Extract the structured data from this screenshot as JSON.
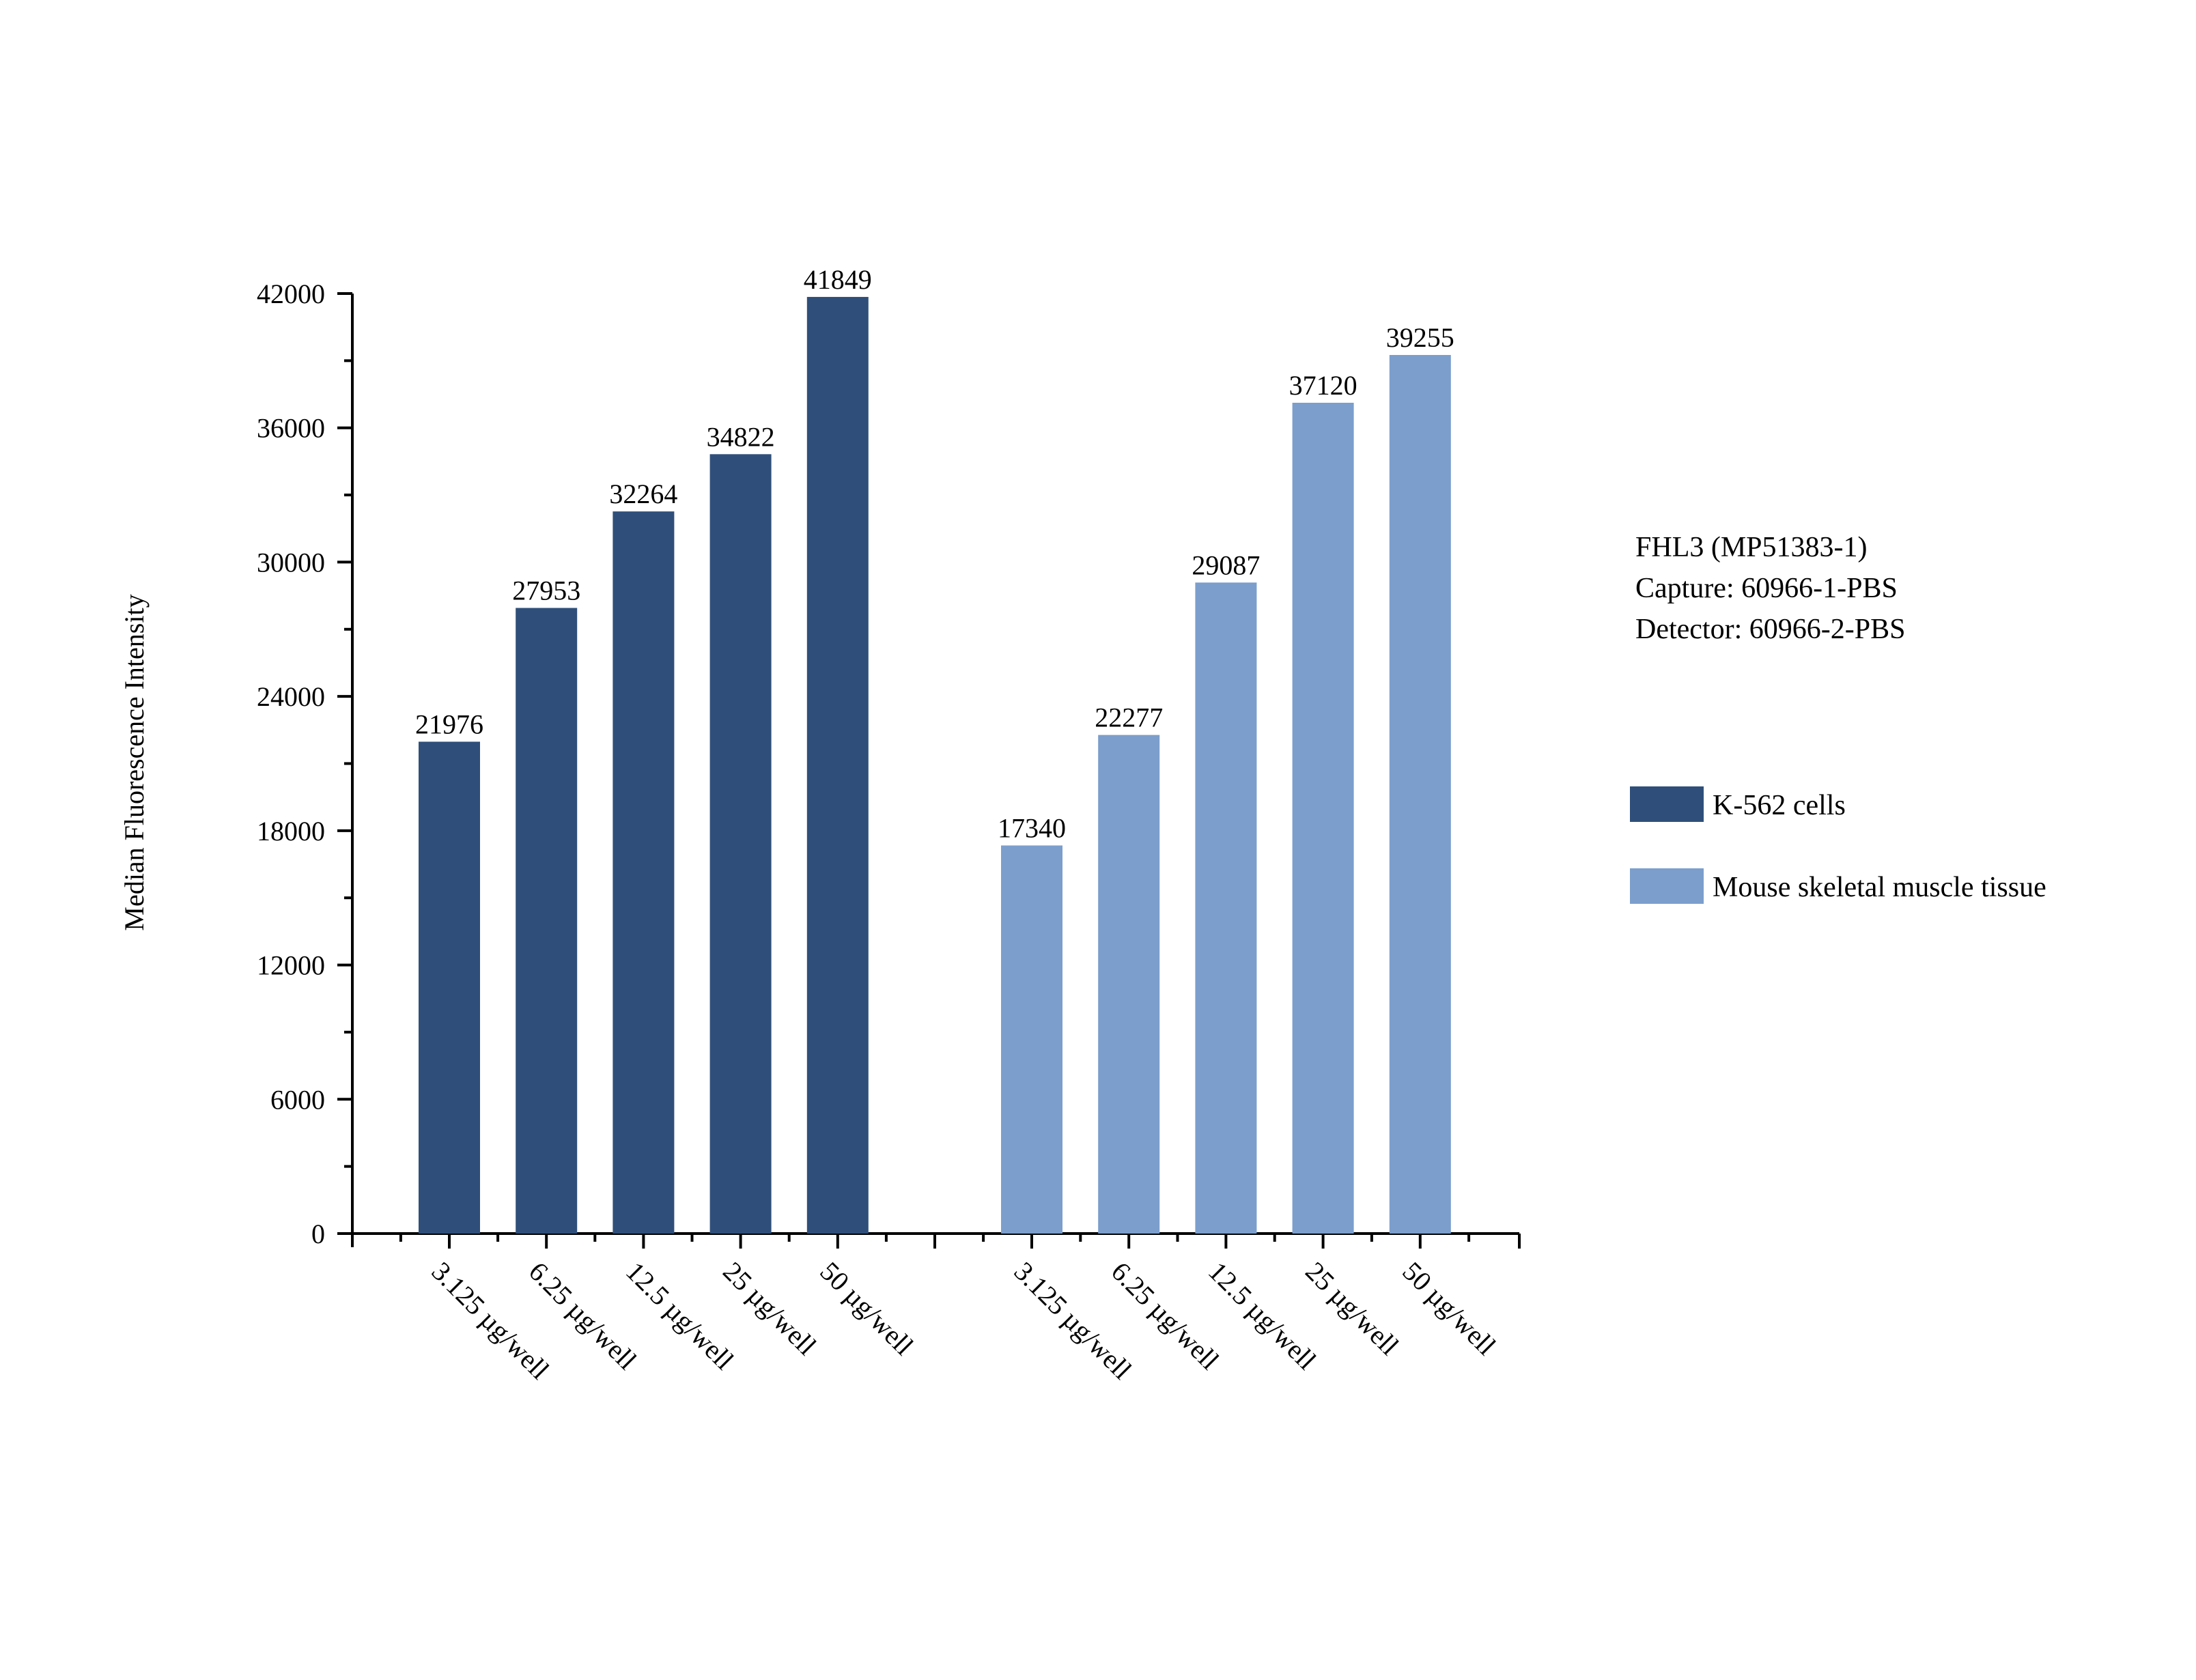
{
  "chart_data": {
    "type": "bar",
    "ylabel": "Median Fluorescence Intensity",
    "xlabel": "",
    "ylim": [
      0,
      42000
    ],
    "yticks": [
      0,
      6000,
      12000,
      18000,
      24000,
      30000,
      36000,
      42000
    ],
    "categories": [
      "3.125 µg/well",
      "6.25 µg/well",
      "12.5 µg/well",
      "25 µg/well",
      "50 µg/well"
    ],
    "series": [
      {
        "name": "K-562 cells",
        "color": "#2f4f7a",
        "values": [
          21976,
          27953,
          32264,
          34822,
          41849
        ]
      },
      {
        "name": "Mouse skeletal muscle  tissue",
        "color": "#7b9ecc",
        "values": [
          17340,
          22277,
          29087,
          37120,
          39255
        ]
      }
    ],
    "legend_position": "right",
    "grid": false,
    "annotation": [
      "FHL3 (MP51383-1)",
      "Capture: 60966-1-PBS",
      "Detector: 60966-2-PBS"
    ]
  }
}
